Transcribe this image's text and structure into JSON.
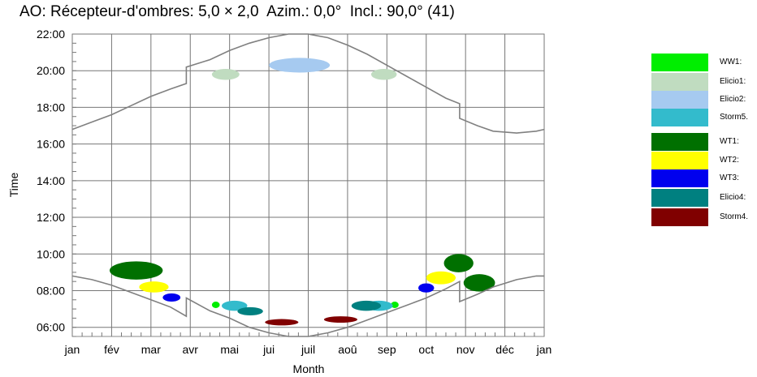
{
  "chart_data": {
    "type": "scatter",
    "title": "AO: Récepteur-d'ombres: 5,0 × 2,0  Azim.: 0,0°  Incl.: 90,0° (41)",
    "xlabel": "Month",
    "ylabel": "Time",
    "x_ticks": [
      "jan",
      "fév",
      "mar",
      "avr",
      "mai",
      "jui",
      "juil",
      "aoû",
      "sep",
      "oct",
      "nov",
      "déc",
      "jan"
    ],
    "y_ticks": [
      "06:00",
      "08:00",
      "10:00",
      "12:00",
      "14:00",
      "16:00",
      "18:00",
      "20:00",
      "22:00"
    ],
    "ylim": [
      "05:30",
      "22:00"
    ],
    "grid": true,
    "legend_position": "right",
    "sunset_curve": [
      {
        "month": 0,
        "time": 16.8
      },
      {
        "month": 0.5,
        "time": 17.2
      },
      {
        "month": 1,
        "time": 17.6
      },
      {
        "month": 1.5,
        "time": 18.1
      },
      {
        "month": 2,
        "time": 18.6
      },
      {
        "month": 2.5,
        "time": 19.0
      },
      {
        "month": 2.9,
        "time": 19.3
      },
      {
        "month": 2.9,
        "time": 20.2
      },
      {
        "month": 3.5,
        "time": 20.6
      },
      {
        "month": 4,
        "time": 21.1
      },
      {
        "month": 4.5,
        "time": 21.5
      },
      {
        "month": 5,
        "time": 21.8
      },
      {
        "month": 5.5,
        "time": 22.0
      },
      {
        "month": 6,
        "time": 22.0
      },
      {
        "month": 6.5,
        "time": 21.8
      },
      {
        "month": 7,
        "time": 21.4
      },
      {
        "month": 7.5,
        "time": 20.9
      },
      {
        "month": 8,
        "time": 20.3
      },
      {
        "month": 8.5,
        "time": 19.7
      },
      {
        "month": 9,
        "time": 19.1
      },
      {
        "month": 9.5,
        "time": 18.5
      },
      {
        "month": 9.85,
        "time": 18.2
      },
      {
        "month": 9.85,
        "time": 17.4
      },
      {
        "month": 10.3,
        "time": 17.0
      },
      {
        "month": 10.7,
        "time": 16.7
      },
      {
        "month": 11.3,
        "time": 16.6
      },
      {
        "month": 11.8,
        "time": 16.7
      },
      {
        "month": 12,
        "time": 16.8
      }
    ],
    "sunrise_curve": [
      {
        "month": 0,
        "time": 8.8
      },
      {
        "month": 0.5,
        "time": 8.6
      },
      {
        "month": 1,
        "time": 8.3
      },
      {
        "month": 1.5,
        "time": 7.9
      },
      {
        "month": 2,
        "time": 7.5
      },
      {
        "month": 2.5,
        "time": 7.1
      },
      {
        "month": 2.9,
        "time": 6.6
      },
      {
        "month": 2.9,
        "time": 7.6
      },
      {
        "month": 3.5,
        "time": 6.9
      },
      {
        "month": 4,
        "time": 6.5
      },
      {
        "month": 4.5,
        "time": 6.0
      },
      {
        "month": 5,
        "time": 5.7
      },
      {
        "month": 5.5,
        "time": 5.5
      },
      {
        "month": 6,
        "time": 5.5
      },
      {
        "month": 6.5,
        "time": 5.7
      },
      {
        "month": 7,
        "time": 6.0
      },
      {
        "month": 7.5,
        "time": 6.4
      },
      {
        "month": 8,
        "time": 6.8
      },
      {
        "month": 8.5,
        "time": 7.2
      },
      {
        "month": 9,
        "time": 7.6
      },
      {
        "month": 9.5,
        "time": 8.1
      },
      {
        "month": 9.85,
        "time": 8.5
      },
      {
        "month": 9.85,
        "time": 7.4
      },
      {
        "month": 10.3,
        "time": 7.8
      },
      {
        "month": 10.7,
        "time": 8.2
      },
      {
        "month": 11.3,
        "time": 8.6
      },
      {
        "month": 11.8,
        "time": 8.8
      },
      {
        "month": 12,
        "time": 8.8
      }
    ],
    "series": [
      {
        "name": "WW1:",
        "color": "#00ee00",
        "regions": [
          {
            "month_start": 3.55,
            "month_end": 3.75,
            "time_start": 7.05,
            "time_end": 7.4
          },
          {
            "month_start": 8.1,
            "month_end": 8.3,
            "time_start": 7.05,
            "time_end": 7.4
          }
        ]
      },
      {
        "name": "Elicio1:",
        "color": "#c0dcc0",
        "regions": [
          {
            "month_start": 3.55,
            "month_end": 4.25,
            "time_start": 19.5,
            "time_end": 20.1
          },
          {
            "month_start": 7.6,
            "month_end": 8.25,
            "time_start": 19.5,
            "time_end": 20.1
          }
        ]
      },
      {
        "name": "Elicio2:",
        "color": "#a6caf0",
        "regions": [
          {
            "month_start": 5.0,
            "month_end": 6.55,
            "time_start": 19.9,
            "time_end": 20.7
          }
        ]
      },
      {
        "name": "Storm5.",
        "color": "#33bbcc",
        "regions": [
          {
            "month_start": 3.8,
            "month_end": 4.45,
            "time_start": 6.9,
            "time_end": 7.45
          },
          {
            "month_start": 7.45,
            "month_end": 8.15,
            "time_start": 6.9,
            "time_end": 7.45
          }
        ]
      },
      {
        "name": "WT1:",
        "color": "#007000",
        "regions": [
          {
            "month_start": 0.95,
            "month_end": 2.3,
            "time_start": 8.6,
            "time_end": 9.6
          },
          {
            "month_start": 9.45,
            "month_end": 10.2,
            "time_start": 9.0,
            "time_end": 10.0
          },
          {
            "month_start": 9.95,
            "month_end": 10.75,
            "time_start": 7.95,
            "time_end": 8.9
          }
        ]
      },
      {
        "name": "WT2:",
        "color": "#ffff00",
        "regions": [
          {
            "month_start": 1.7,
            "month_end": 2.45,
            "time_start": 7.9,
            "time_end": 8.5
          },
          {
            "month_start": 9.0,
            "month_end": 9.75,
            "time_start": 8.35,
            "time_end": 9.05
          }
        ]
      },
      {
        "name": "WT3:",
        "color": "#0000ee",
        "regions": [
          {
            "month_start": 2.3,
            "month_end": 2.75,
            "time_start": 7.4,
            "time_end": 7.85
          },
          {
            "month_start": 8.8,
            "month_end": 9.2,
            "time_start": 7.9,
            "time_end": 8.4
          }
        ]
      },
      {
        "name": "Elicio4:",
        "color": "#008080",
        "regions": [
          {
            "month_start": 4.2,
            "month_end": 4.85,
            "time_start": 6.65,
            "time_end": 7.1
          },
          {
            "month_start": 7.1,
            "month_end": 7.85,
            "time_start": 6.9,
            "time_end": 7.45
          }
        ]
      },
      {
        "name": "Storm4.",
        "color": "#800000",
        "regions": [
          {
            "month_start": 4.9,
            "month_end": 5.75,
            "time_start": 6.1,
            "time_end": 6.45
          },
          {
            "month_start": 6.4,
            "month_end": 7.25,
            "time_start": 6.25,
            "time_end": 6.6
          }
        ]
      }
    ]
  }
}
